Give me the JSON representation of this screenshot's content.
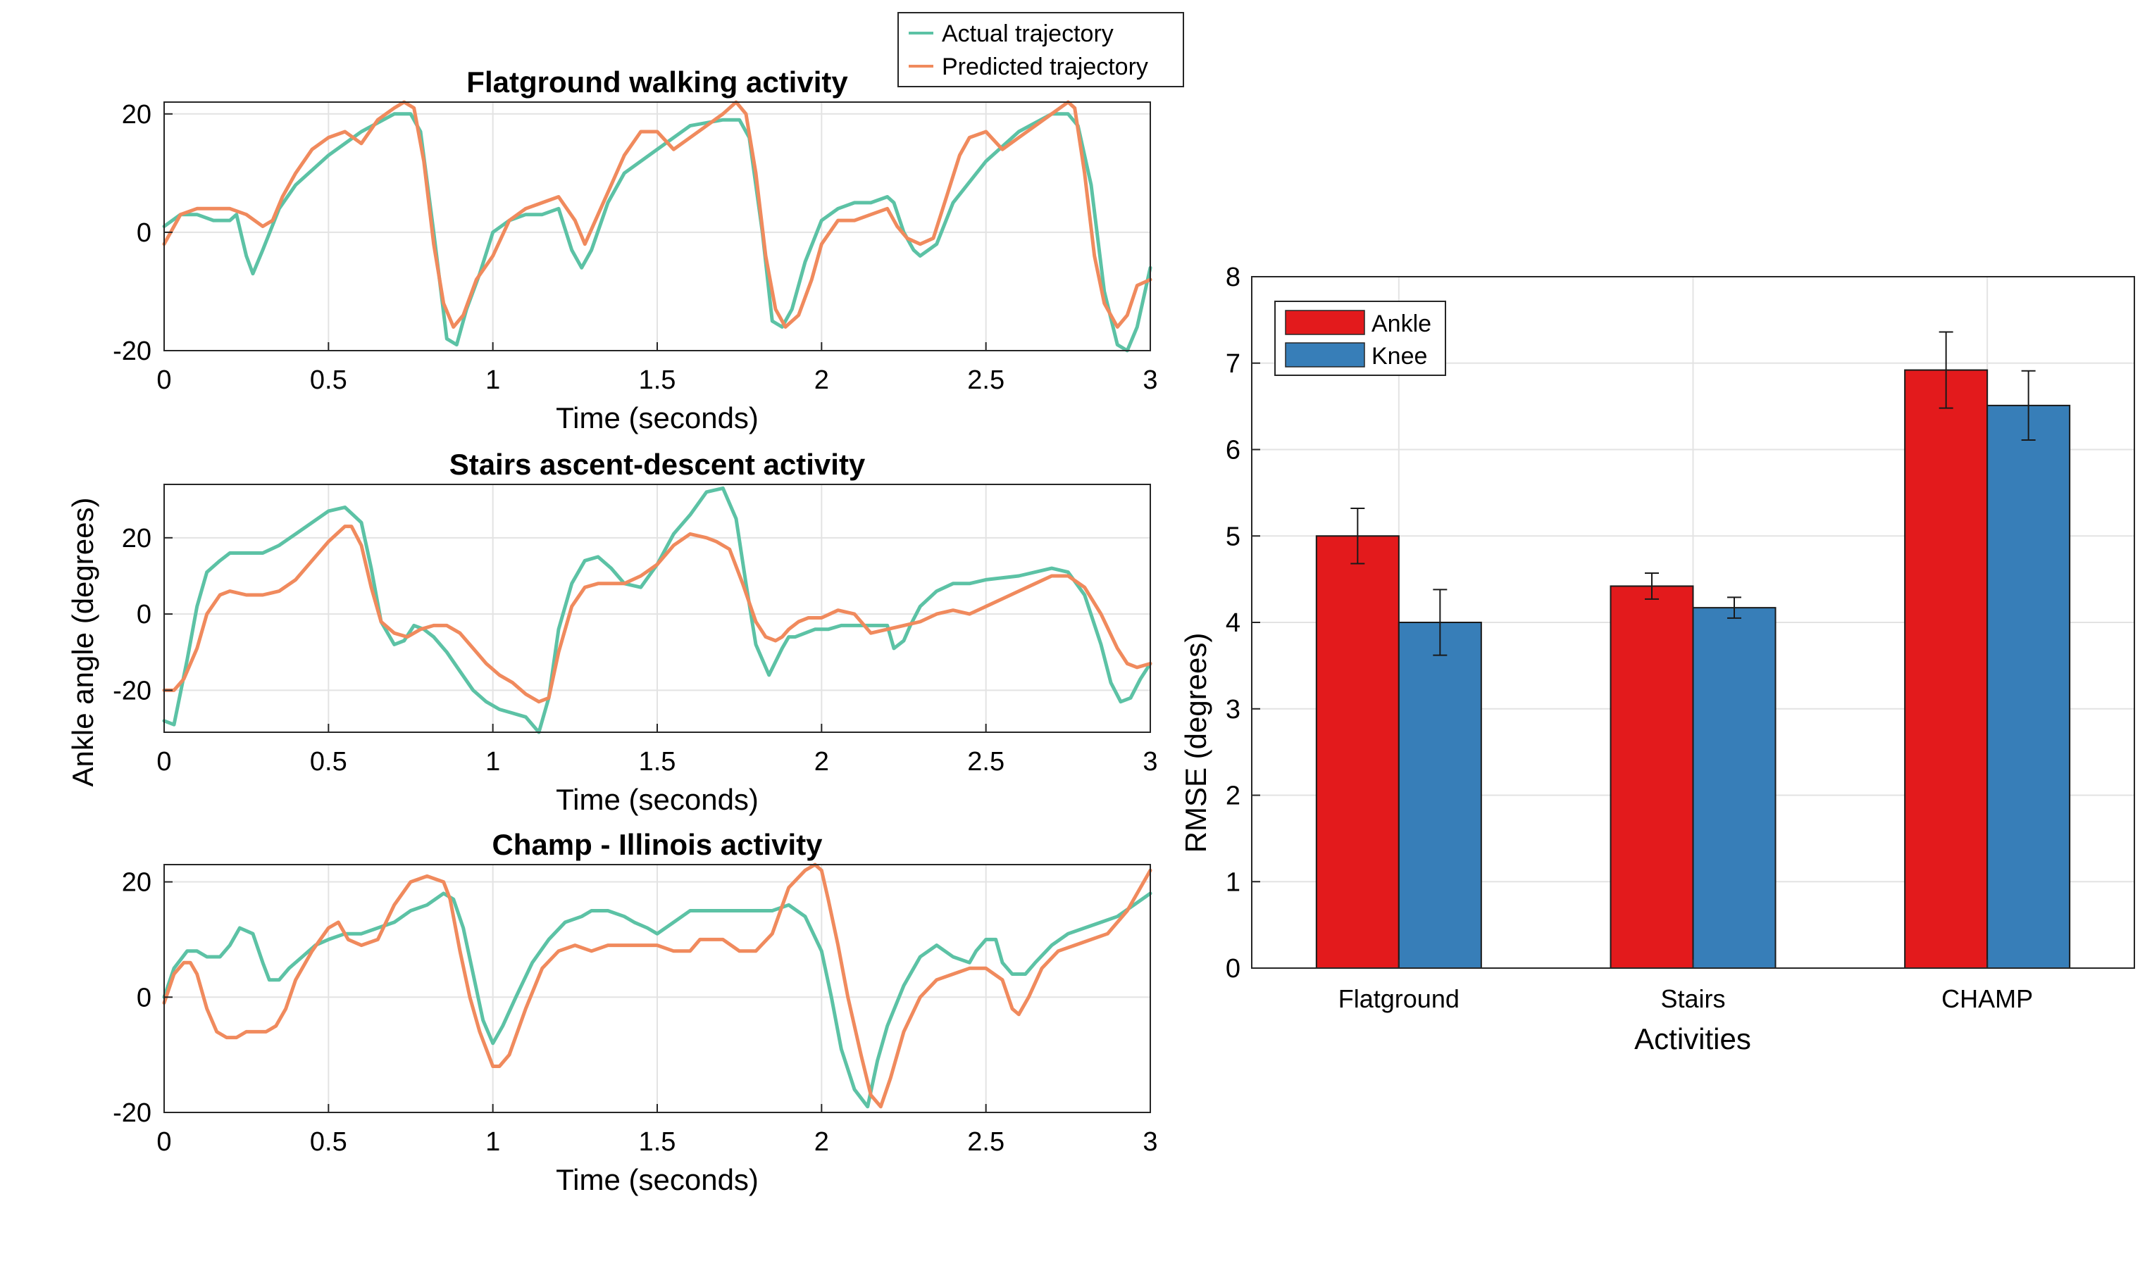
{
  "legend_left": {
    "entries": [
      {
        "label": "Actual trajectory",
        "color": "#5cc2a5"
      },
      {
        "label": "Predicted trajectory",
        "color": "#f08a5d"
      }
    ]
  },
  "shared_ylabel": "Ankle angle (degrees)",
  "chart_data": [
    {
      "type": "line",
      "title": "Flatground walking activity",
      "xlabel": "Time (seconds)",
      "ylabel": "",
      "xlim": [
        0,
        3
      ],
      "ylim": [
        -20,
        22
      ],
      "xticks": [
        0,
        0.5,
        1,
        1.5,
        2,
        2.5,
        3
      ],
      "xtick_labels": [
        "0",
        "0.5",
        "1",
        "1.5",
        "2",
        "2.5",
        "3"
      ],
      "yticks": [
        -20,
        0,
        20
      ],
      "ytick_labels": [
        "-20",
        "0",
        "20"
      ],
      "grid": true,
      "series": [
        {
          "name": "Actual trajectory",
          "color": "#5cc2a5",
          "x": [
            0,
            0.05,
            0.1,
            0.15,
            0.2,
            0.22,
            0.25,
            0.27,
            0.3,
            0.35,
            0.4,
            0.5,
            0.6,
            0.7,
            0.75,
            0.78,
            0.82,
            0.86,
            0.89,
            0.92,
            0.96,
            1.0,
            1.05,
            1.1,
            1.15,
            1.2,
            1.24,
            1.27,
            1.3,
            1.35,
            1.4,
            1.5,
            1.6,
            1.7,
            1.75,
            1.78,
            1.82,
            1.85,
            1.88,
            1.91,
            1.95,
            2.0,
            2.05,
            2.1,
            2.15,
            2.2,
            2.22,
            2.25,
            2.28,
            2.3,
            2.35,
            2.4,
            2.5,
            2.6,
            2.7,
            2.75,
            2.78,
            2.82,
            2.86,
            2.9,
            2.93,
            2.96,
            3.0
          ],
          "y": [
            1,
            3,
            3,
            2,
            2,
            3,
            -4,
            -7,
            -3,
            4,
            8,
            13,
            17,
            20,
            20,
            17,
            0,
            -18,
            -19,
            -13,
            -7,
            0,
            2,
            3,
            3,
            4,
            -3,
            -6,
            -3,
            5,
            10,
            14,
            18,
            19,
            19,
            16,
            0,
            -15,
            -16,
            -13,
            -5,
            2,
            4,
            5,
            5,
            6,
            5,
            0,
            -3,
            -4,
            -2,
            5,
            12,
            17,
            20,
            20,
            18,
            8,
            -10,
            -19,
            -20,
            -16,
            -6
          ]
        },
        {
          "name": "Predicted trajectory",
          "color": "#f08a5d",
          "x": [
            0,
            0.05,
            0.1,
            0.15,
            0.2,
            0.25,
            0.3,
            0.33,
            0.36,
            0.4,
            0.45,
            0.5,
            0.55,
            0.6,
            0.65,
            0.7,
            0.73,
            0.76,
            0.79,
            0.82,
            0.85,
            0.88,
            0.91,
            0.95,
            1.0,
            1.05,
            1.1,
            1.15,
            1.2,
            1.25,
            1.28,
            1.32,
            1.36,
            1.4,
            1.45,
            1.5,
            1.55,
            1.6,
            1.65,
            1.7,
            1.74,
            1.77,
            1.8,
            1.83,
            1.86,
            1.89,
            1.93,
            1.97,
            2.0,
            2.05,
            2.1,
            2.15,
            2.2,
            2.23,
            2.26,
            2.3,
            2.34,
            2.38,
            2.42,
            2.45,
            2.5,
            2.55,
            2.6,
            2.65,
            2.7,
            2.75,
            2.77,
            2.8,
            2.83,
            2.86,
            2.9,
            2.93,
            2.96,
            3.0
          ],
          "y": [
            -2,
            3,
            4,
            4,
            4,
            3,
            1,
            2,
            6,
            10,
            14,
            16,
            17,
            15,
            19,
            21,
            22,
            21,
            12,
            -2,
            -12,
            -16,
            -14,
            -8,
            -4,
            2,
            4,
            5,
            6,
            2,
            -2,
            3,
            8,
            13,
            17,
            17,
            14,
            16,
            18,
            20,
            22,
            20,
            10,
            -4,
            -13,
            -16,
            -14,
            -8,
            -2,
            2,
            2,
            3,
            4,
            1,
            -1,
            -2,
            -1,
            6,
            13,
            16,
            17,
            14,
            16,
            18,
            20,
            22,
            21,
            10,
            -4,
            -12,
            -16,
            -14,
            -9,
            -8
          ]
        }
      ]
    },
    {
      "type": "line",
      "title": "Stairs ascent-descent activity",
      "xlabel": "Time (seconds)",
      "ylabel": "",
      "xlim": [
        0,
        3
      ],
      "ylim": [
        -31,
        34
      ],
      "xticks": [
        0,
        0.5,
        1,
        1.5,
        2,
        2.5,
        3
      ],
      "xtick_labels": [
        "0",
        "0.5",
        "1",
        "1.5",
        "2",
        "2.5",
        "3"
      ],
      "yticks": [
        -20,
        0,
        20
      ],
      "ytick_labels": [
        "-20",
        "0",
        "20"
      ],
      "grid": true,
      "series": [
        {
          "name": "Actual trajectory",
          "color": "#5cc2a5",
          "x": [
            0,
            0.03,
            0.07,
            0.1,
            0.13,
            0.17,
            0.2,
            0.25,
            0.3,
            0.35,
            0.4,
            0.45,
            0.5,
            0.55,
            0.6,
            0.63,
            0.66,
            0.7,
            0.73,
            0.76,
            0.79,
            0.82,
            0.86,
            0.9,
            0.94,
            0.98,
            1.02,
            1.06,
            1.1,
            1.14,
            1.17,
            1.2,
            1.24,
            1.28,
            1.32,
            1.36,
            1.4,
            1.45,
            1.5,
            1.55,
            1.6,
            1.65,
            1.7,
            1.74,
            1.77,
            1.8,
            1.84,
            1.88,
            1.9,
            1.92,
            1.95,
            1.98,
            2.02,
            2.06,
            2.1,
            2.15,
            2.2,
            2.22,
            2.25,
            2.27,
            2.3,
            2.35,
            2.4,
            2.45,
            2.5,
            2.6,
            2.7,
            2.75,
            2.8,
            2.85,
            2.88,
            2.91,
            2.94,
            2.97,
            3.0
          ],
          "y": [
            -28,
            -29,
            -12,
            2,
            11,
            14,
            16,
            16,
            16,
            18,
            21,
            24,
            27,
            28,
            24,
            12,
            -2,
            -8,
            -7,
            -3,
            -4,
            -6,
            -10,
            -15,
            -20,
            -23,
            -25,
            -26,
            -27,
            -31,
            -22,
            -4,
            8,
            14,
            15,
            12,
            8,
            7,
            13,
            21,
            26,
            32,
            33,
            25,
            8,
            -8,
            -16,
            -9,
            -6,
            -6,
            -5,
            -4,
            -4,
            -3,
            -3,
            -3,
            -3,
            -9,
            -7,
            -3,
            2,
            6,
            8,
            8,
            9,
            10,
            12,
            11,
            5,
            -8,
            -18,
            -23,
            -22,
            -17,
            -13
          ]
        },
        {
          "name": "Predicted trajectory",
          "color": "#f08a5d",
          "x": [
            0,
            0.03,
            0.06,
            0.1,
            0.13,
            0.17,
            0.2,
            0.25,
            0.3,
            0.35,
            0.4,
            0.45,
            0.5,
            0.55,
            0.57,
            0.6,
            0.63,
            0.66,
            0.7,
            0.74,
            0.78,
            0.82,
            0.86,
            0.9,
            0.94,
            0.98,
            1.02,
            1.06,
            1.1,
            1.14,
            1.17,
            1.2,
            1.24,
            1.28,
            1.32,
            1.36,
            1.4,
            1.45,
            1.5,
            1.55,
            1.6,
            1.65,
            1.68,
            1.72,
            1.76,
            1.8,
            1.83,
            1.86,
            1.88,
            1.9,
            1.93,
            1.96,
            2.0,
            2.05,
            2.1,
            2.15,
            2.2,
            2.25,
            2.3,
            2.35,
            2.4,
            2.45,
            2.5,
            2.55,
            2.6,
            2.65,
            2.7,
            2.75,
            2.8,
            2.85,
            2.9,
            2.93,
            2.96,
            3.0
          ],
          "y": [
            -20,
            -20,
            -17,
            -9,
            0,
            5,
            6,
            5,
            5,
            6,
            9,
            14,
            19,
            23,
            23,
            18,
            7,
            -2,
            -5,
            -6,
            -4,
            -3,
            -3,
            -5,
            -9,
            -13,
            -16,
            -18,
            -21,
            -23,
            -22,
            -10,
            2,
            7,
            8,
            8,
            8,
            10,
            13,
            18,
            21,
            20,
            19,
            17,
            8,
            -2,
            -6,
            -7,
            -6,
            -4,
            -2,
            -1,
            -1,
            1,
            0,
            -5,
            -4,
            -3,
            -2,
            0,
            1,
            0,
            2,
            4,
            6,
            8,
            10,
            10,
            7,
            0,
            -9,
            -13,
            -14,
            -13
          ]
        }
      ]
    },
    {
      "type": "line",
      "title": "Champ - Illinois activity",
      "xlabel": "Time (seconds)",
      "ylabel": "",
      "xlim": [
        0,
        3
      ],
      "ylim": [
        -20,
        23
      ],
      "xticks": [
        0,
        0.5,
        1,
        1.5,
        2,
        2.5,
        3
      ],
      "xtick_labels": [
        "0",
        "0.5",
        "1",
        "1.5",
        "2",
        "2.5",
        "3"
      ],
      "yticks": [
        -20,
        0,
        20
      ],
      "ytick_labels": [
        "-20",
        "0",
        "20"
      ],
      "grid": true,
      "series": [
        {
          "name": "Actual trajectory",
          "color": "#5cc2a5",
          "x": [
            0,
            0.03,
            0.07,
            0.1,
            0.13,
            0.17,
            0.2,
            0.23,
            0.27,
            0.3,
            0.32,
            0.35,
            0.38,
            0.42,
            0.46,
            0.5,
            0.55,
            0.6,
            0.65,
            0.7,
            0.75,
            0.8,
            0.85,
            0.88,
            0.91,
            0.94,
            0.97,
            1.0,
            1.03,
            1.07,
            1.12,
            1.17,
            1.22,
            1.27,
            1.3,
            1.35,
            1.4,
            1.43,
            1.47,
            1.5,
            1.55,
            1.6,
            1.65,
            1.7,
            1.75,
            1.8,
            1.85,
            1.9,
            1.95,
            2.0,
            2.03,
            2.06,
            2.1,
            2.14,
            2.17,
            2.2,
            2.25,
            2.3,
            2.35,
            2.4,
            2.45,
            2.47,
            2.5,
            2.53,
            2.55,
            2.58,
            2.62,
            2.65,
            2.7,
            2.75,
            2.8,
            2.85,
            2.9,
            2.95,
            3.0
          ],
          "y": [
            0,
            5,
            8,
            8,
            7,
            7,
            9,
            12,
            11,
            6,
            3,
            3,
            5,
            7,
            9,
            10,
            11,
            11,
            12,
            13,
            15,
            16,
            18,
            17,
            12,
            4,
            -4,
            -8,
            -5,
            0,
            6,
            10,
            13,
            14,
            15,
            15,
            14,
            13,
            12,
            11,
            13,
            15,
            15,
            15,
            15,
            15,
            15,
            16,
            14,
            8,
            0,
            -9,
            -16,
            -19,
            -11,
            -5,
            2,
            7,
            9,
            7,
            6,
            8,
            10,
            10,
            6,
            4,
            4,
            6,
            9,
            11,
            12,
            13,
            14,
            16,
            18
          ]
        },
        {
          "name": "Predicted trajectory",
          "color": "#f08a5d",
          "x": [
            0,
            0.03,
            0.06,
            0.08,
            0.1,
            0.13,
            0.16,
            0.19,
            0.22,
            0.25,
            0.28,
            0.31,
            0.34,
            0.37,
            0.4,
            0.45,
            0.5,
            0.53,
            0.56,
            0.6,
            0.65,
            0.7,
            0.75,
            0.8,
            0.85,
            0.87,
            0.9,
            0.93,
            0.96,
            1.0,
            1.02,
            1.05,
            1.1,
            1.15,
            1.2,
            1.25,
            1.3,
            1.35,
            1.4,
            1.45,
            1.5,
            1.55,
            1.6,
            1.63,
            1.67,
            1.7,
            1.75,
            1.8,
            1.85,
            1.9,
            1.95,
            1.98,
            2.0,
            2.02,
            2.05,
            2.08,
            2.12,
            2.15,
            2.18,
            2.21,
            2.25,
            2.3,
            2.35,
            2.4,
            2.45,
            2.5,
            2.55,
            2.58,
            2.6,
            2.63,
            2.67,
            2.72,
            2.77,
            2.82,
            2.87,
            2.93,
            3.0
          ],
          "y": [
            -1,
            4,
            6,
            6,
            4,
            -2,
            -6,
            -7,
            -7,
            -6,
            -6,
            -6,
            -5,
            -2,
            3,
            8,
            12,
            13,
            10,
            9,
            10,
            16,
            20,
            21,
            20,
            17,
            8,
            0,
            -6,
            -12,
            -12,
            -10,
            -2,
            5,
            8,
            9,
            8,
            9,
            9,
            9,
            9,
            8,
            8,
            10,
            10,
            10,
            8,
            8,
            11,
            19,
            22,
            23,
            22,
            17,
            9,
            0,
            -10,
            -17,
            -19,
            -14,
            -6,
            0,
            3,
            4,
            5,
            5,
            3,
            -2,
            -3,
            0,
            5,
            8,
            9,
            10,
            11,
            15,
            22
          ]
        }
      ]
    },
    {
      "type": "bar",
      "title": "",
      "xlabel": "Activities",
      "ylabel": "RMSE (degrees)",
      "categories": [
        "Flatground",
        "Stairs",
        "CHAMP"
      ],
      "ylim": [
        0,
        8
      ],
      "yticks": [
        0,
        1,
        2,
        3,
        4,
        5,
        6,
        7,
        8
      ],
      "ytick_labels": [
        "0",
        "1",
        "2",
        "3",
        "4",
        "5",
        "6",
        "7",
        "8"
      ],
      "grid": true,
      "legend_position": "top-left",
      "series": [
        {
          "name": "Ankle",
          "color": "#e31a1c",
          "values": [
            5.0,
            4.42,
            6.92
          ],
          "error": [
            0.32,
            0.15,
            0.44
          ]
        },
        {
          "name": "Knee",
          "color": "#377eb8",
          "values": [
            4.0,
            4.17,
            6.51
          ],
          "error": [
            0.38,
            0.12,
            0.4
          ]
        }
      ]
    }
  ]
}
